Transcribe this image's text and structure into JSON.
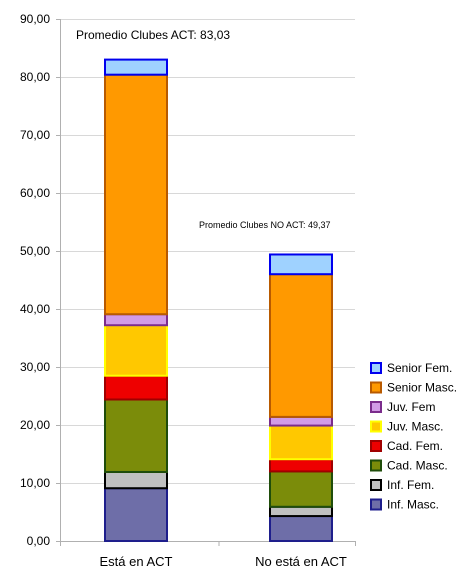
{
  "chart_data": {
    "type": "bar",
    "stacked": true,
    "categories": [
      "Está en ACT",
      "No está en ACT"
    ],
    "ylim": [
      0,
      90
    ],
    "yticks": [
      "0,00",
      "10,00",
      "20,00",
      "30,00",
      "40,00",
      "50,00",
      "60,00",
      "70,00",
      "80,00",
      "90,00"
    ],
    "grid": true,
    "legend_position": "right",
    "annotations": [
      {
        "text": "Promedio Clubes ACT: 83,03",
        "category_index": 0,
        "total": 83.03
      },
      {
        "text": "Promedio Clubes NO ACT: 49,37",
        "category_index": 1,
        "total": 49.37
      }
    ],
    "series": [
      {
        "name": "Inf. Masc.",
        "fill": "#6E6EA8",
        "stroke": "#1E1E8C",
        "values": [
          9.1,
          4.3
        ]
      },
      {
        "name": "Inf. Fem.",
        "fill": "#C0C0C0",
        "stroke": "#000000",
        "values": [
          2.8,
          1.6
        ]
      },
      {
        "name": "Cad. Masc.",
        "fill": "#7B8C0A",
        "stroke": "#1F4D0A",
        "values": [
          12.5,
          6.1
        ]
      },
      {
        "name": "Cad. Fem.",
        "fill": "#EE0000",
        "stroke": "#A00000",
        "values": [
          4.1,
          2.1
        ]
      },
      {
        "name": "Juv. Masc.",
        "fill": "#FFC800",
        "stroke": "#FFFF00",
        "values": [
          8.7,
          5.8
        ]
      },
      {
        "name": "Juv. Fem",
        "fill": "#D29BE6",
        "stroke": "#7B2C8C",
        "values": [
          1.9,
          1.5
        ]
      },
      {
        "name": "Senior Masc.",
        "fill": "#FF9900",
        "stroke": "#B85A00",
        "values": [
          41.3,
          24.6
        ]
      },
      {
        "name": "Senior Fem.",
        "fill": "#9FD2FF",
        "stroke": "#0000EE",
        "values": [
          2.6,
          3.4
        ]
      }
    ]
  }
}
